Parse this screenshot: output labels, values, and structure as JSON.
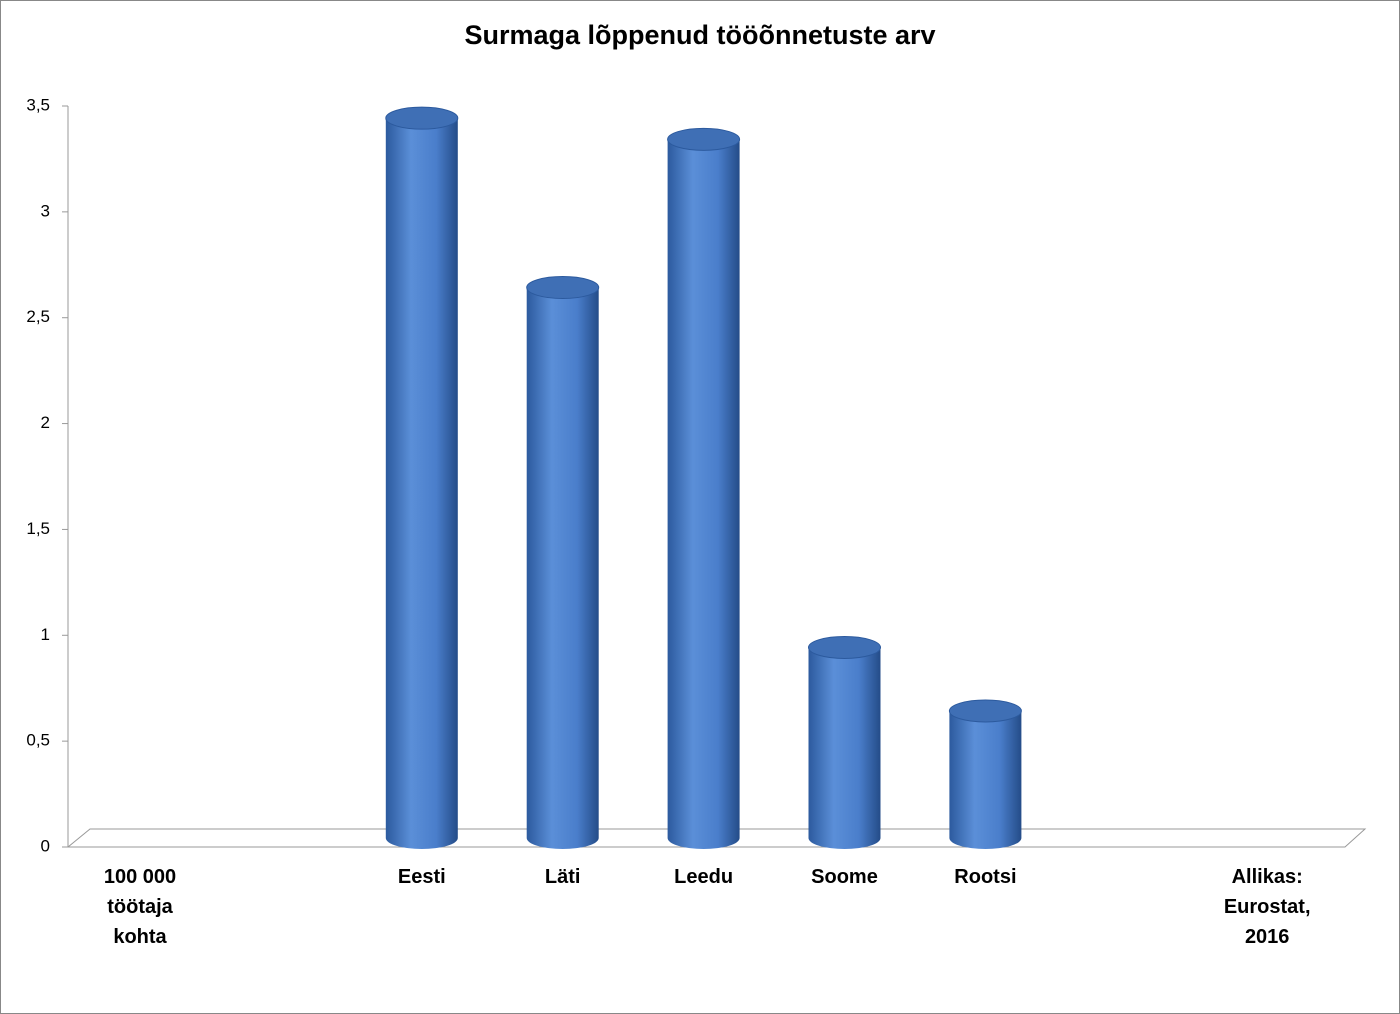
{
  "chart_data": {
    "type": "bar3d",
    "title": "Surmaga lõppenud tööõnnetuste arv",
    "categories": [
      "100 000 töötaja kohta",
      null,
      "Eesti",
      "Läti",
      "Leedu",
      "Soome",
      "Rootsi",
      null,
      "Allikas: Eurostat, 2016"
    ],
    "values": [
      null,
      null,
      3.4,
      2.6,
      3.3,
      0.9,
      0.6,
      null,
      null
    ],
    "color": "#4a7ecb",
    "ylim": [
      0,
      3.5
    ],
    "yticks": [
      0,
      {
        "value": 0.5,
        "label": "0,5"
      },
      1,
      {
        "value": 1.5,
        "label": "1,5"
      },
      2,
      {
        "value": 2.5,
        "label": "2,5"
      },
      3,
      {
        "value": 3.5,
        "label": "3,5"
      }
    ],
    "grid": false
  }
}
